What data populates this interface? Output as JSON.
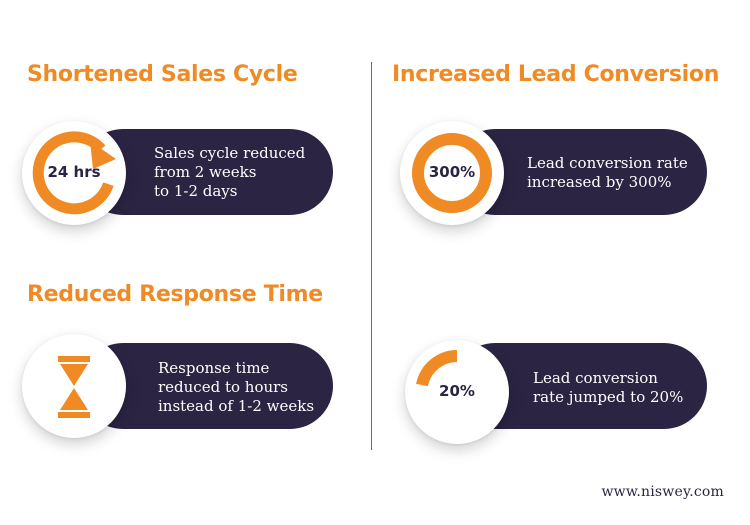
{
  "sections": {
    "sales_cycle": {
      "title": "Shortened Sales Cycle",
      "badge": "24 hrs",
      "text": [
        "Sales cycle reduced",
        "from 2 weeks",
        "to 1-2 days"
      ],
      "icon": "circular-arrow-icon"
    },
    "lead_conversion": {
      "title": "Increased Lead Conversion",
      "badge": "300%",
      "text": [
        "Lead conversion rate",
        "increased by 300%"
      ],
      "icon": "ring-icon"
    },
    "response_time": {
      "title": "Reduced Response Time",
      "text": [
        "Response time",
        "reduced to hours",
        "instead of 1-2 weeks"
      ],
      "icon": "hourglass-icon"
    },
    "lead_rate": {
      "badge": "20%",
      "text": [
        "Lead conversion",
        "rate jumped to 20%"
      ],
      "icon": "quarter-arc-icon"
    }
  },
  "footer": "www.niswey.com",
  "colors": {
    "accent": "#f08a24",
    "dark": "#2b2443",
    "white": "#ffffff"
  }
}
